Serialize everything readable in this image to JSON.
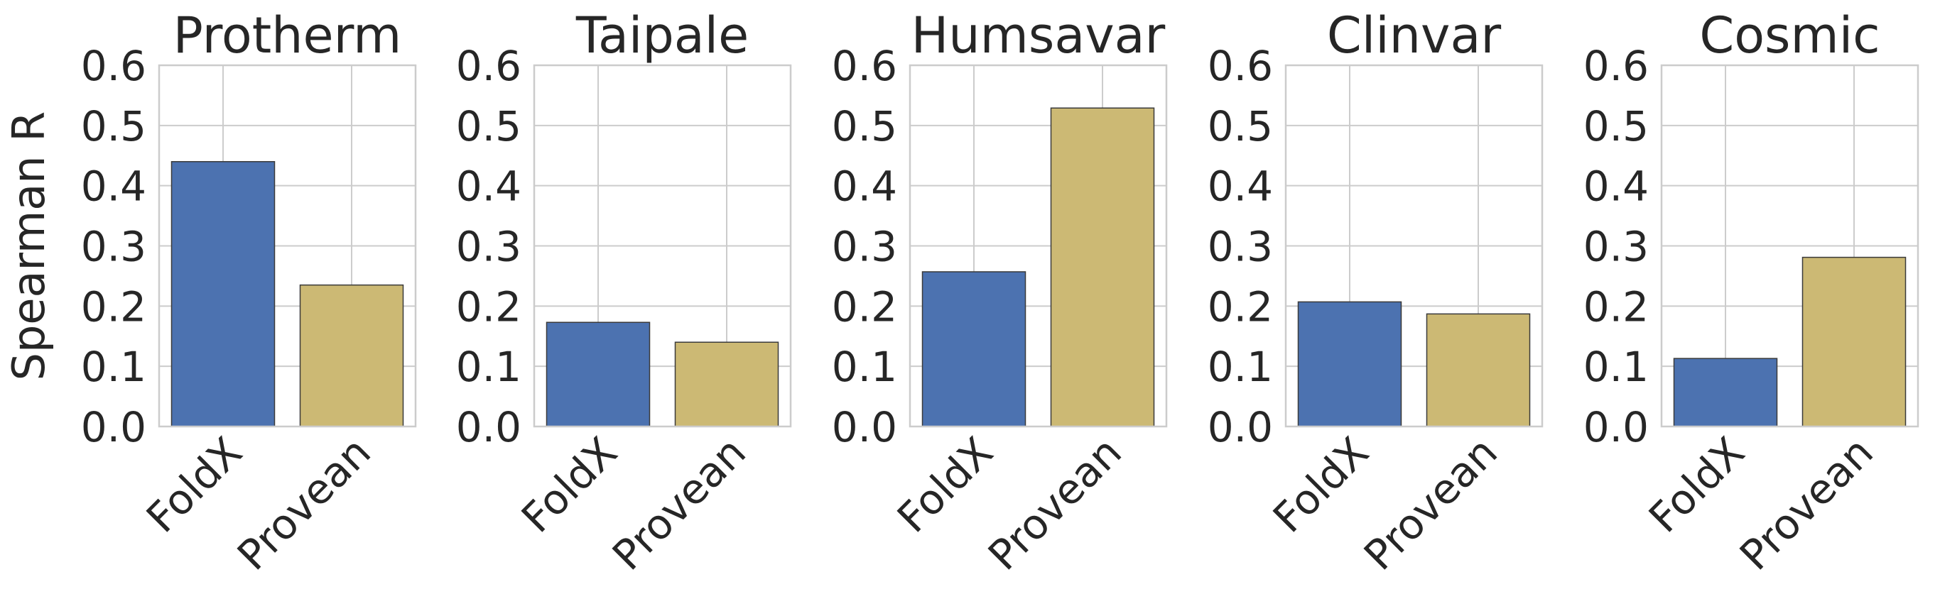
{
  "chart_data": [
    {
      "type": "bar",
      "title": "Protherm",
      "ylabel": "Spearman R",
      "categories": [
        "FoldX",
        "Provean"
      ],
      "values": [
        0.44,
        0.235
      ],
      "colors": [
        "#4c72b0",
        "#ccb974"
      ],
      "ylim": [
        0.0,
        0.6
      ],
      "yticks": [
        "0.0",
        "0.1",
        "0.2",
        "0.3",
        "0.4",
        "0.5",
        "0.6"
      ],
      "grid": true
    },
    {
      "type": "bar",
      "title": "Taipale",
      "ylabel": "",
      "categories": [
        "FoldX",
        "Provean"
      ],
      "values": [
        0.173,
        0.14
      ],
      "colors": [
        "#4c72b0",
        "#ccb974"
      ],
      "ylim": [
        0.0,
        0.6
      ],
      "yticks": [
        "0.0",
        "0.1",
        "0.2",
        "0.3",
        "0.4",
        "0.5",
        "0.6"
      ],
      "grid": true
    },
    {
      "type": "bar",
      "title": "Humsavar",
      "ylabel": "",
      "categories": [
        "FoldX",
        "Provean"
      ],
      "values": [
        0.257,
        0.529
      ],
      "colors": [
        "#4c72b0",
        "#ccb974"
      ],
      "ylim": [
        0.0,
        0.6
      ],
      "yticks": [
        "0.0",
        "0.1",
        "0.2",
        "0.3",
        "0.4",
        "0.5",
        "0.6"
      ],
      "grid": true
    },
    {
      "type": "bar",
      "title": "Clinvar",
      "ylabel": "",
      "categories": [
        "FoldX",
        "Provean"
      ],
      "values": [
        0.207,
        0.187
      ],
      "colors": [
        "#4c72b0",
        "#ccb974"
      ],
      "ylim": [
        0.0,
        0.6
      ],
      "yticks": [
        "0.0",
        "0.1",
        "0.2",
        "0.3",
        "0.4",
        "0.5",
        "0.6"
      ],
      "grid": true
    },
    {
      "type": "bar",
      "title": "Cosmic",
      "ylabel": "",
      "categories": [
        "FoldX",
        "Provean"
      ],
      "values": [
        0.113,
        0.281
      ],
      "colors": [
        "#4c72b0",
        "#ccb974"
      ],
      "ylim": [
        0.0,
        0.6
      ],
      "yticks": [
        "0.0",
        "0.1",
        "0.2",
        "0.3",
        "0.4",
        "0.5",
        "0.6"
      ],
      "grid": true
    }
  ],
  "colors": {
    "gridline": "#cccccc",
    "axes_edge": "#cccccc",
    "text": "#262626",
    "bar_edge": "#3a3a3a"
  }
}
